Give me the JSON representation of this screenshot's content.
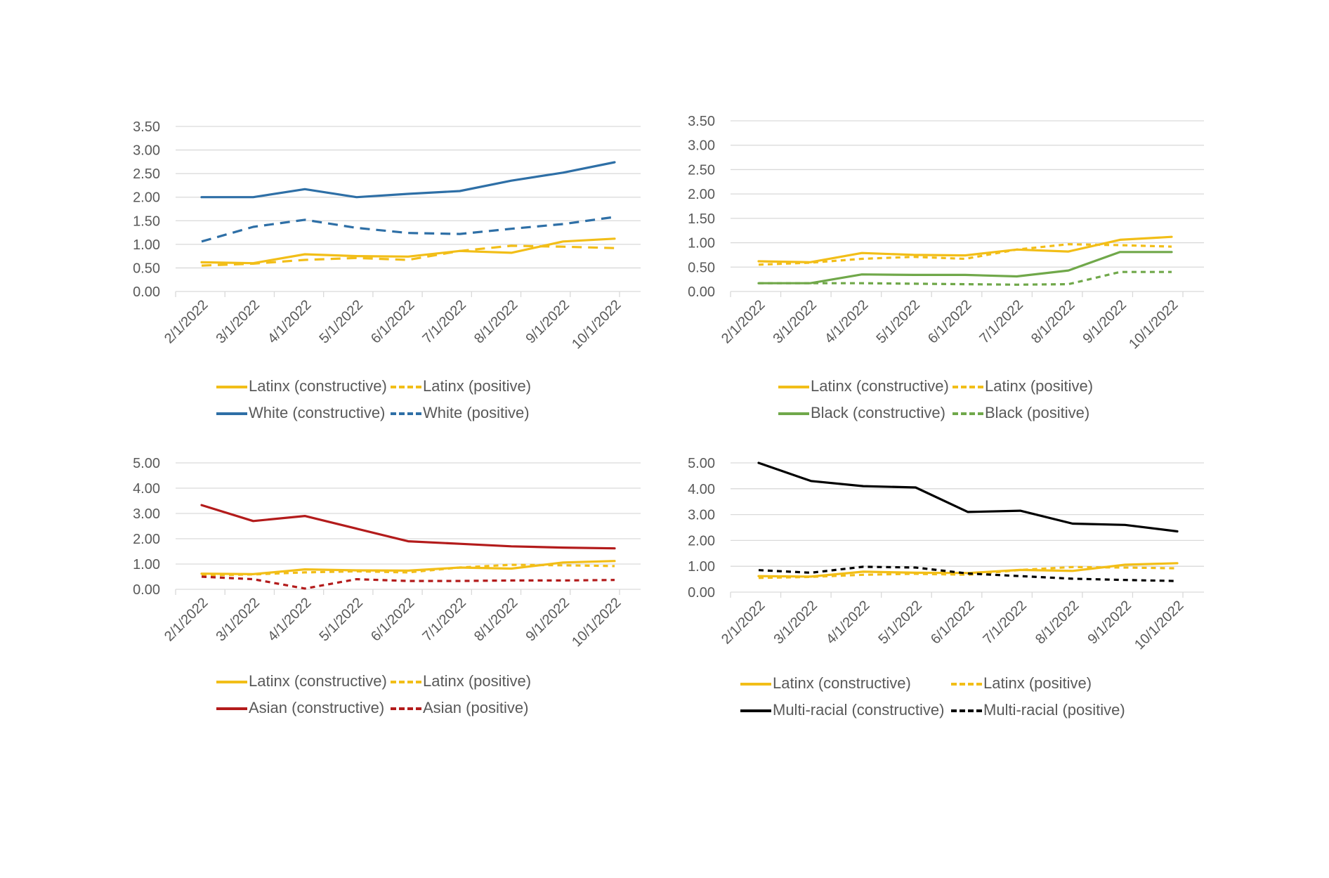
{
  "x_categories": [
    "2/1/2022",
    "3/1/2022",
    "4/1/2022",
    "5/1/2022",
    "6/1/2022",
    "7/1/2022",
    "8/1/2022",
    "9/1/2022",
    "10/1/2022"
  ],
  "colors": {
    "latinx": "#F2BE18",
    "white": "#2E6FA6",
    "black_group": "#70A84A",
    "asian": "#B31B1B",
    "multiracial": "#000000",
    "gridline": "#D9D9D9",
    "axis_text": "#595959"
  },
  "chart_data": [
    {
      "type": "line",
      "categories": [
        "2/1/2022",
        "3/1/2022",
        "4/1/2022",
        "5/1/2022",
        "6/1/2022",
        "7/1/2022",
        "8/1/2022",
        "9/1/2022",
        "10/1/2022"
      ],
      "ylim": [
        0,
        3.5
      ],
      "yticks": [
        "0.00",
        "0.50",
        "1.00",
        "1.50",
        "2.00",
        "2.50",
        "3.00",
        "3.50"
      ],
      "grid": true,
      "legend_position": "bottom",
      "series": [
        {
          "name": "Latinx (constructive)",
          "style": "solid",
          "color": "#F2BE18",
          "values": [
            0.62,
            0.6,
            0.79,
            0.75,
            0.74,
            0.86,
            0.82,
            1.06,
            1.12
          ]
        },
        {
          "name": "Latinx (positive)",
          "style": "dashed",
          "color": "#F2BE18",
          "values": [
            0.55,
            0.59,
            0.67,
            0.71,
            0.67,
            0.86,
            0.97,
            0.95,
            0.92
          ]
        },
        {
          "name": "White (constructive)",
          "style": "solid",
          "color": "#2E6FA6",
          "values": [
            2.0,
            2.0,
            2.17,
            2.0,
            2.07,
            2.13,
            2.35,
            2.52,
            2.74
          ]
        },
        {
          "name": "White (positive)",
          "style": "dashed",
          "color": "#2E6FA6",
          "values": [
            1.06,
            1.37,
            1.52,
            1.35,
            1.24,
            1.22,
            1.33,
            1.43,
            1.58
          ]
        }
      ]
    },
    {
      "type": "line",
      "categories": [
        "2/1/2022",
        "3/1/2022",
        "4/1/2022",
        "5/1/2022",
        "6/1/2022",
        "7/1/2022",
        "8/1/2022",
        "9/1/2022",
        "10/1/2022"
      ],
      "ylim": [
        0,
        3.5
      ],
      "yticks": [
        "0.00",
        "0.50",
        "1.00",
        "1.50",
        "2.00",
        "2.50",
        "3.00",
        "3.50"
      ],
      "grid": true,
      "legend_position": "bottom",
      "series": [
        {
          "name": "Latinx (constructive)",
          "style": "solid",
          "color": "#F2BE18",
          "values": [
            0.62,
            0.6,
            0.79,
            0.75,
            0.74,
            0.86,
            0.82,
            1.06,
            1.12
          ]
        },
        {
          "name": "Latinx (positive)",
          "style": "dashed-short",
          "color": "#F2BE18",
          "values": [
            0.55,
            0.59,
            0.67,
            0.71,
            0.67,
            0.86,
            0.97,
            0.95,
            0.92
          ]
        },
        {
          "name": "Black (constructive)",
          "style": "solid",
          "color": "#70A84A",
          "values": [
            0.17,
            0.17,
            0.35,
            0.34,
            0.34,
            0.31,
            0.43,
            0.81,
            0.81
          ]
        },
        {
          "name": "Black (positive)",
          "style": "dashed-short",
          "color": "#70A84A",
          "values": [
            0.17,
            0.17,
            0.17,
            0.16,
            0.15,
            0.14,
            0.15,
            0.4,
            0.4
          ]
        }
      ]
    },
    {
      "type": "line",
      "categories": [
        "2/1/2022",
        "3/1/2022",
        "4/1/2022",
        "5/1/2022",
        "6/1/2022",
        "7/1/2022",
        "8/1/2022",
        "9/1/2022",
        "10/1/2022"
      ],
      "ylim": [
        0,
        5
      ],
      "yticks": [
        "0.00",
        "1.00",
        "2.00",
        "3.00",
        "4.00",
        "5.00"
      ],
      "grid": true,
      "legend_position": "bottom",
      "series": [
        {
          "name": "Latinx (constructive)",
          "style": "solid",
          "color": "#F2BE18",
          "values": [
            0.62,
            0.6,
            0.79,
            0.75,
            0.74,
            0.86,
            0.82,
            1.06,
            1.12
          ]
        },
        {
          "name": "Latinx (positive)",
          "style": "dashed-short",
          "color": "#F2BE18",
          "values": [
            0.55,
            0.59,
            0.67,
            0.71,
            0.67,
            0.86,
            0.97,
            0.95,
            0.92
          ]
        },
        {
          "name": "Asian (constructive)",
          "style": "solid",
          "color": "#B31B1B",
          "values": [
            3.33,
            2.7,
            2.9,
            2.4,
            1.9,
            1.8,
            1.7,
            1.65,
            1.62
          ]
        },
        {
          "name": "Asian (positive)",
          "style": "dashed-short",
          "color": "#B31B1B",
          "values": [
            0.5,
            0.4,
            0.03,
            0.4,
            0.33,
            0.33,
            0.35,
            0.35,
            0.37
          ]
        }
      ]
    },
    {
      "type": "line",
      "categories": [
        "2/1/2022",
        "3/1/2022",
        "4/1/2022",
        "5/1/2022",
        "6/1/2022",
        "7/1/2022",
        "8/1/2022",
        "9/1/2022",
        "10/1/2022"
      ],
      "ylim": [
        0,
        5
      ],
      "yticks": [
        "0.00",
        "1.00",
        "2.00",
        "3.00",
        "4.00",
        "5.00"
      ],
      "grid": true,
      "legend_position": "bottom",
      "series": [
        {
          "name": "Latinx (constructive)",
          "style": "solid",
          "color": "#F2BE18",
          "values": [
            0.62,
            0.6,
            0.79,
            0.75,
            0.74,
            0.86,
            0.82,
            1.06,
            1.12
          ]
        },
        {
          "name": "Latinx (positive)",
          "style": "dashed-short",
          "color": "#F2BE18",
          "values": [
            0.55,
            0.59,
            0.67,
            0.71,
            0.67,
            0.86,
            0.97,
            0.95,
            0.92
          ]
        },
        {
          "name": "Multi-racial (constructive)",
          "style": "solid",
          "color": "#000000",
          "values": [
            5.0,
            4.3,
            4.1,
            4.05,
            3.1,
            3.15,
            2.65,
            2.6,
            2.35
          ]
        },
        {
          "name": "Multi-racial (positive)",
          "style": "dashed-short",
          "color": "#000000",
          "values": [
            0.85,
            0.75,
            0.98,
            0.95,
            0.72,
            0.62,
            0.52,
            0.47,
            0.43
          ]
        }
      ]
    }
  ],
  "legends": [
    [
      {
        "label": "Latinx (constructive)"
      },
      {
        "label": "Latinx (positive)"
      },
      {
        "label": "White (constructive)"
      },
      {
        "label": "White (positive)"
      }
    ],
    [
      {
        "label": "Latinx (constructive)"
      },
      {
        "label": "Latinx (positive)"
      },
      {
        "label": "Black (constructive)"
      },
      {
        "label": "Black (positive)"
      }
    ],
    [
      {
        "label": "Latinx (constructive)"
      },
      {
        "label": "Latinx (positive)"
      },
      {
        "label": "Asian (constructive)"
      },
      {
        "label": "Asian (positive)"
      }
    ],
    [
      {
        "label": "Latinx (constructive)"
      },
      {
        "label": "Latinx (positive)"
      },
      {
        "label": "Multi-racial (constructive)"
      },
      {
        "label": "Multi-racial (positive)"
      }
    ]
  ]
}
